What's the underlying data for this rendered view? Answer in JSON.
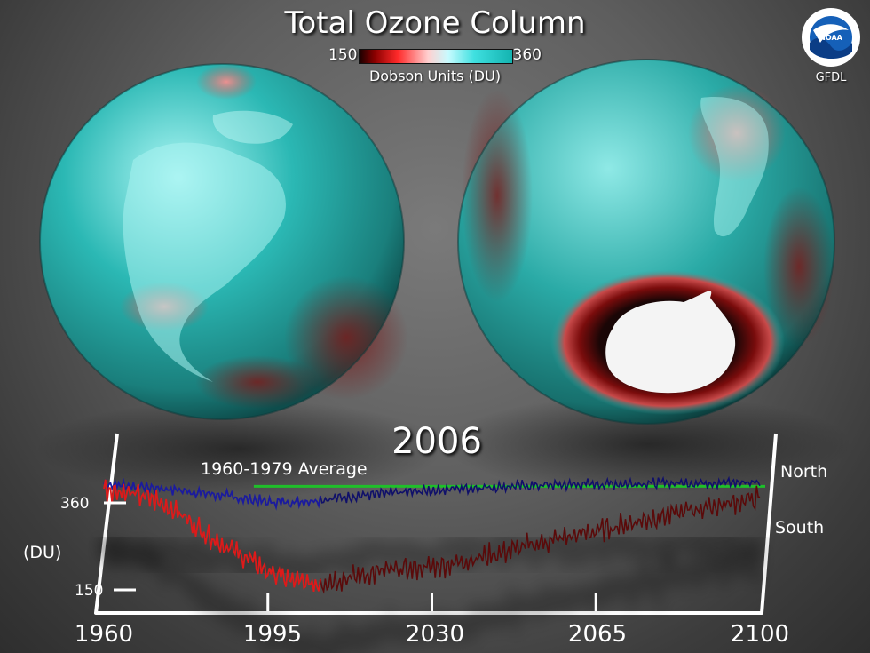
{
  "header": {
    "title": "Total Ozone Column",
    "colorbar_min": "150",
    "colorbar_max": "360",
    "units": "Dobson Units (DU)",
    "logo_text": "NOAA",
    "org": "GFDL"
  },
  "colors": {
    "ozone_high": "#2ec4c0",
    "ozone_low": "#b01515",
    "north_line": "#1b1b9e",
    "north_line_recent": "#10106a",
    "south_line": "#dd1a1a",
    "south_line_recent": "#5a0a0a",
    "average_line": "#1fbf2a"
  },
  "chart_data": {
    "type": "line",
    "year_label": "2006",
    "average_label": "1960-1979 Average",
    "ylabel": "(DU)",
    "ytick_labels": [
      "360",
      "150"
    ],
    "xtick_labels": [
      "1960",
      "1995",
      "2030",
      "2065",
      "2100"
    ],
    "xlim": [
      1960,
      2100
    ],
    "average_value": 400,
    "series": [
      {
        "name": "North",
        "x": [
          1960,
          1965,
          1970,
          1975,
          1980,
          1985,
          1990,
          1995,
          2000,
          2005,
          2010,
          2015,
          2020,
          2025,
          2030,
          2035,
          2040,
          2045,
          2050,
          2055,
          2060,
          2065,
          2070,
          2075,
          2080,
          2085,
          2090,
          2095,
          2100
        ],
        "y": [
          405,
          402,
          397,
          392,
          385,
          378,
          370,
          362,
          362,
          366,
          372,
          378,
          382,
          386,
          390,
          394,
          397,
          399,
          401,
          403,
          404,
          405,
          406,
          407,
          408,
          408,
          409,
          409,
          410
        ]
      },
      {
        "name": "South",
        "x": [
          1960,
          1965,
          1970,
          1975,
          1980,
          1985,
          1990,
          1995,
          2000,
          2005,
          2010,
          2015,
          2020,
          2025,
          2030,
          2035,
          2040,
          2045,
          2050,
          2055,
          2060,
          2065,
          2070,
          2075,
          2080,
          2085,
          2090,
          2095,
          2100
        ],
        "y": [
          395,
          385,
          370,
          345,
          300,
          262,
          230,
          195,
          172,
          165,
          175,
          185,
          195,
          200,
          205,
          215,
          228,
          240,
          255,
          268,
          280,
          292,
          305,
          318,
          330,
          342,
          352,
          362,
          372
        ]
      }
    ]
  }
}
